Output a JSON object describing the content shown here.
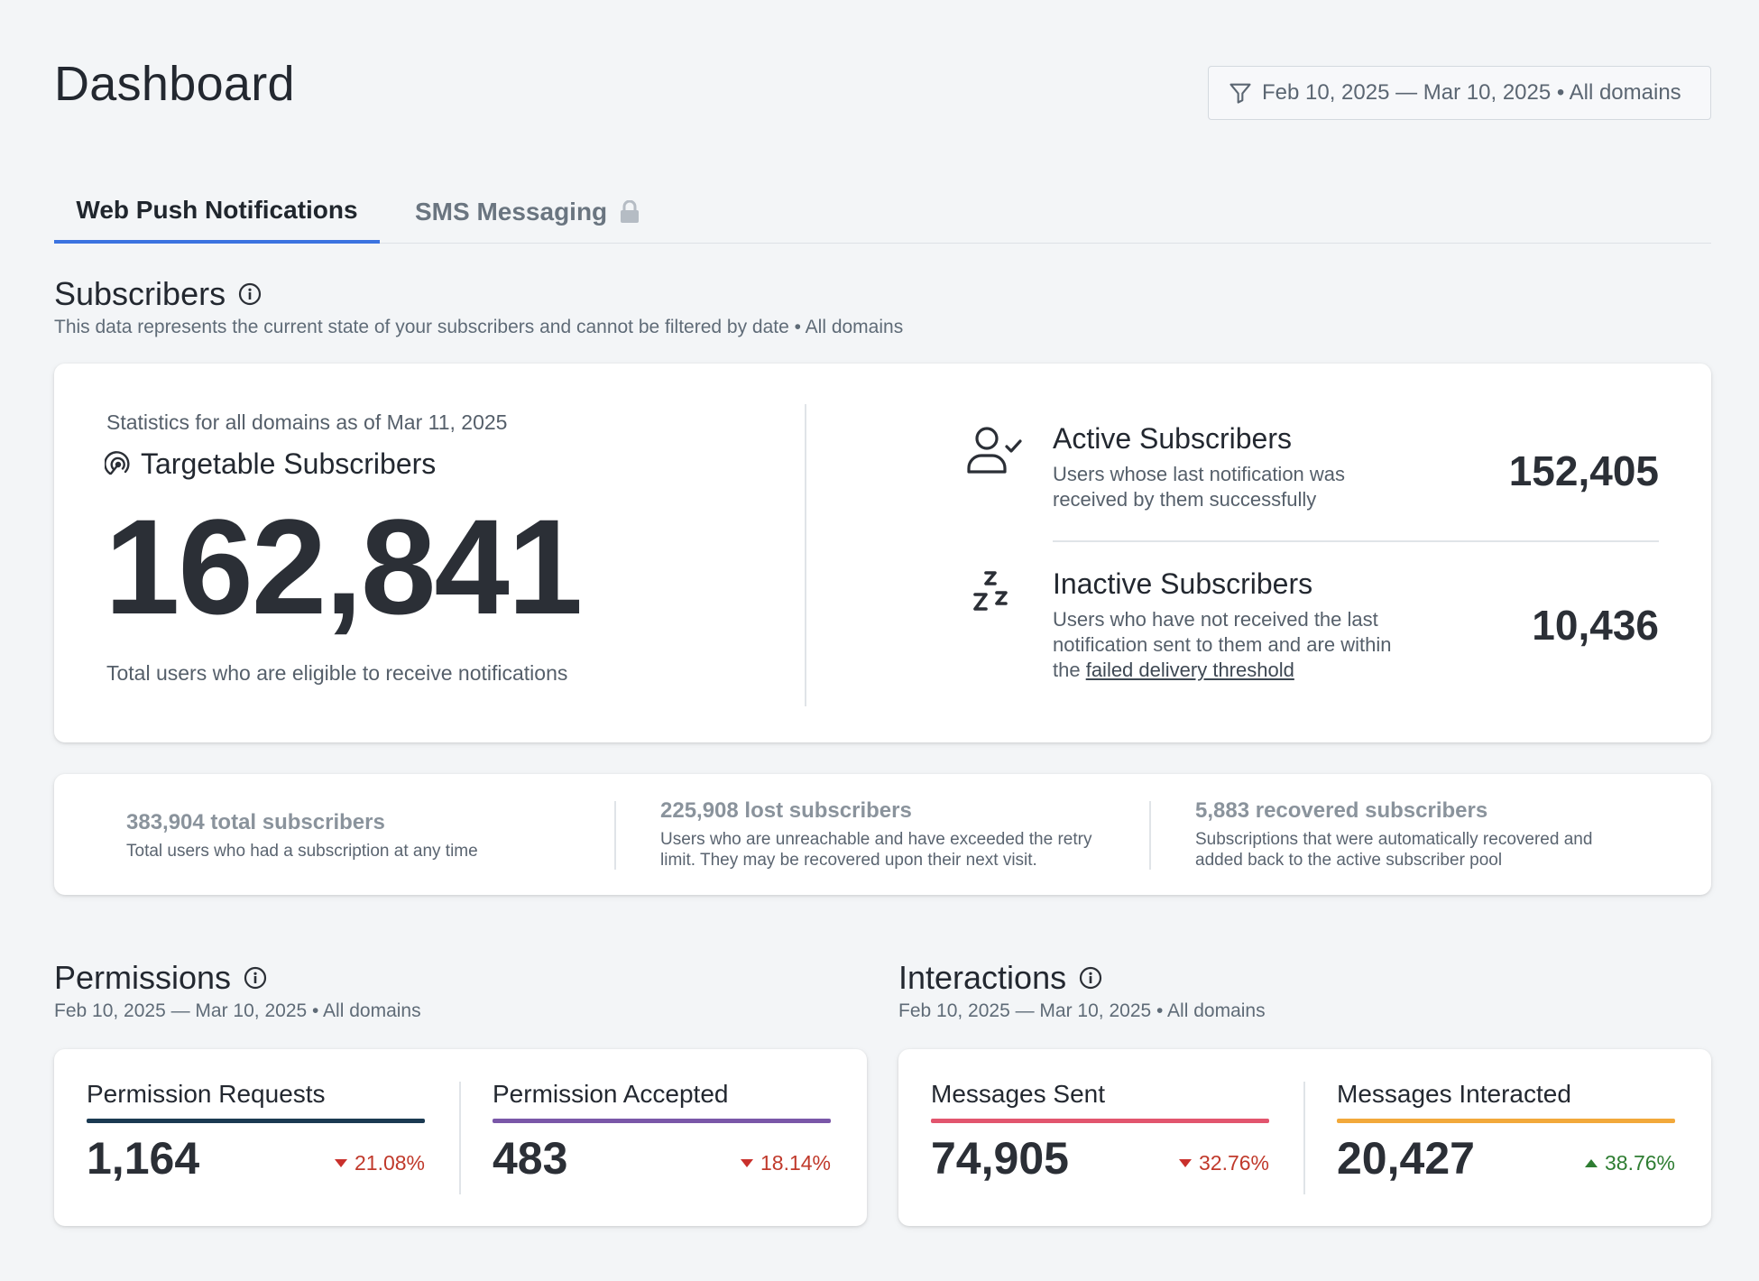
{
  "header": {
    "title": "Dashboard",
    "filter_label": "Feb 10, 2025 — Mar 10, 2025 • All domains"
  },
  "tabs": [
    {
      "label": "Web Push Notifications",
      "active": true
    },
    {
      "label": "SMS Messaging",
      "locked": true
    }
  ],
  "subscribers": {
    "title": "Subscribers",
    "subtitle": "This data represents the current state of your subscribers and cannot be filtered by date • All domains",
    "stat_date": "Statistics for all domains as of Mar 11, 2025",
    "targetable_title": "Targetable Subscribers",
    "targetable_value": "162,841",
    "targetable_desc": "Total users who are eligible to receive notifications",
    "active": {
      "title": "Active Subscribers",
      "desc_line1": "Users whose last notification was",
      "desc_line2": "received by them successfully",
      "value": "152,405"
    },
    "inactive": {
      "title": "Inactive Subscribers",
      "desc_line1": "Users who have not received the last",
      "desc_line2": "notification sent to them and are within",
      "desc_line3_prefix": "the ",
      "desc_link": "failed delivery threshold",
      "value": "10,436"
    }
  },
  "summary": [
    {
      "title": "383,904 total subscribers",
      "desc_line1": "Total users who had a subscription at any time",
      "desc_line2": ""
    },
    {
      "title": "225,908 lost subscribers",
      "desc_line1": "Users who are unreachable and have exceeded the retry",
      "desc_line2": "limit. They may be recovered upon their next visit."
    },
    {
      "title": "5,883 recovered subscribers",
      "desc_line1": "Subscriptions that were automatically recovered and",
      "desc_line2": "added back to the active subscriber pool"
    }
  ],
  "permissions": {
    "title": "Permissions",
    "subtitle": "Feb 10, 2025 — Mar 10, 2025 • All domains",
    "metrics": [
      {
        "label": "Permission Requests",
        "value": "1,164",
        "change": "21.08%",
        "direction": "down",
        "color": "#1b3a52"
      },
      {
        "label": "Permission Accepted",
        "value": "483",
        "change": "18.14%",
        "direction": "down",
        "color": "#7a57a8"
      }
    ]
  },
  "interactions": {
    "title": "Interactions",
    "subtitle": "Feb 10, 2025 — Mar 10, 2025 • All domains",
    "metrics": [
      {
        "label": "Messages Sent",
        "value": "74,905",
        "change": "32.76%",
        "direction": "down",
        "color": "#e2556e"
      },
      {
        "label": "Messages Interacted",
        "value": "20,427",
        "change": "38.76%",
        "direction": "up",
        "color": "#f2a93b"
      }
    ]
  },
  "colors": {
    "accent": "#3b73e0",
    "down": "#c9302c",
    "up": "#2e7d32",
    "background": "#f3f5f7"
  }
}
